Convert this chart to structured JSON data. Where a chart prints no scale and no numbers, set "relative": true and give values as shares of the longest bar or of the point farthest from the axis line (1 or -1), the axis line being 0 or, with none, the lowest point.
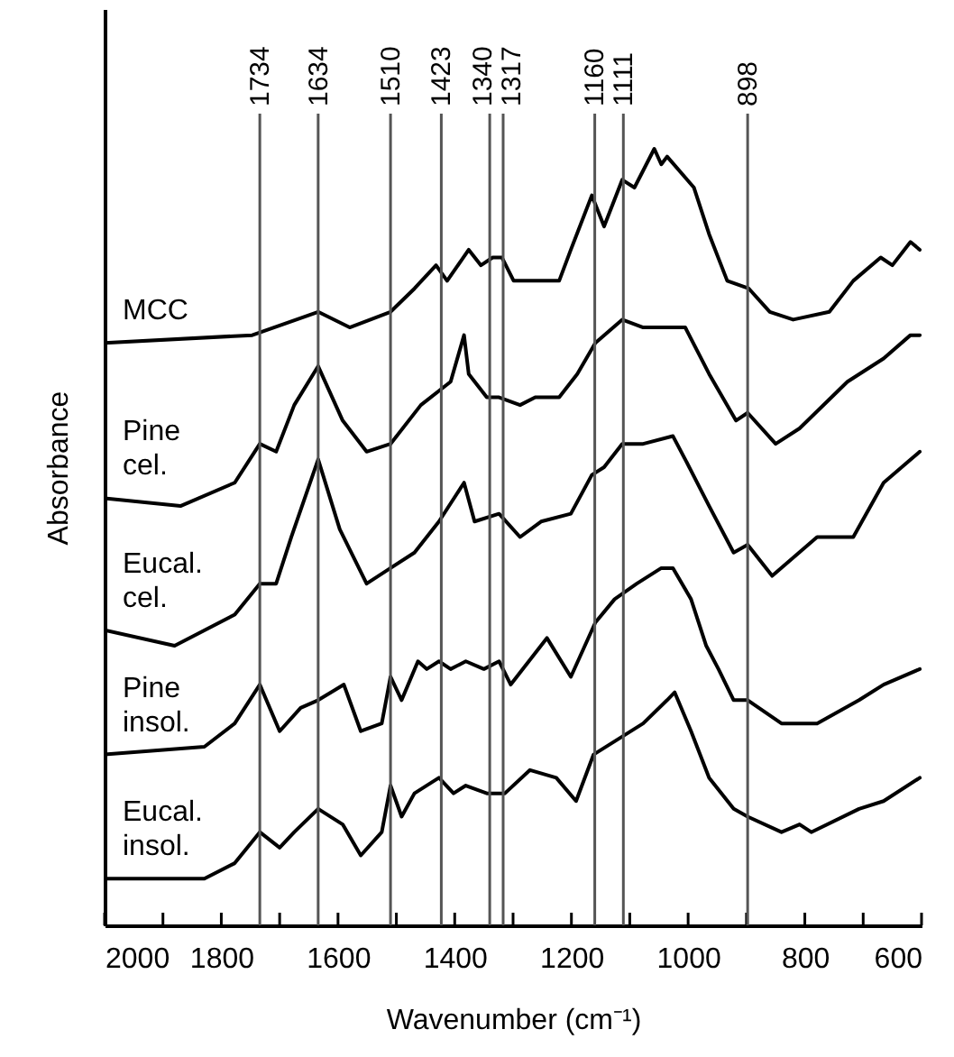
{
  "chart_data": {
    "type": "line",
    "relative": true,
    "xlabel": "Wavenumber (cm⁻¹)",
    "ylabel": "Absorbance",
    "xlim": [
      2000,
      600
    ],
    "xticks": [
      2000,
      {
        "value": 1900,
        "label": null
      },
      1800,
      {
        "value": 1700,
        "label": null
      },
      1600,
      {
        "value": 1500,
        "label": null
      },
      1400,
      {
        "value": 1300,
        "label": null
      },
      1200,
      {
        "value": 1100,
        "label": null
      },
      1000,
      {
        "value": 900,
        "label": null
      },
      800,
      {
        "value": 700,
        "label": null
      },
      600
    ],
    "series": [
      {
        "name": "MCC",
        "color": "#000000",
        "x": [
          2000,
          1747,
          1634,
          1580,
          1510,
          1469,
          1432,
          1413,
          1376,
          1355,
          1335,
          1319,
          1299,
          1221,
          1201,
          1165,
          1144,
          1113,
          1092,
          1058,
          1046,
          1036,
          990,
          964,
          933,
          896,
          860,
          820,
          758,
          717,
          670,
          650,
          619,
          603
        ],
        "values": [
          0.75,
          0.76,
          0.79,
          0.77,
          0.79,
          0.82,
          0.85,
          0.83,
          0.87,
          0.85,
          0.86,
          0.86,
          0.83,
          0.83,
          0.87,
          0.94,
          0.9,
          0.96,
          0.95,
          1.0,
          0.98,
          0.99,
          0.95,
          0.89,
          0.83,
          0.82,
          0.79,
          0.78,
          0.79,
          0.83,
          0.86,
          0.85,
          0.88,
          0.87
        ]
      },
      {
        "name": "Pine cel.",
        "color": "#000000",
        "x": [
          2000,
          1870,
          1777,
          1734,
          1706,
          1675,
          1634,
          1592,
          1551,
          1510,
          1458,
          1407,
          1384,
          1376,
          1345,
          1324,
          1288,
          1262,
          1221,
          1190,
          1159,
          1113,
          1077,
          1036,
          1005,
          964,
          918,
          898,
          850,
          809,
          727,
          665,
          619,
          603
        ],
        "values": [
          0.55,
          0.54,
          0.57,
          0.62,
          0.61,
          0.67,
          0.72,
          0.65,
          0.61,
          0.62,
          0.67,
          0.7,
          0.76,
          0.71,
          0.68,
          0.68,
          0.67,
          0.68,
          0.68,
          0.71,
          0.75,
          0.78,
          0.77,
          0.77,
          0.77,
          0.71,
          0.65,
          0.66,
          0.62,
          0.64,
          0.7,
          0.73,
          0.76,
          0.76
        ]
      },
      {
        "name": "Eucal. cel.",
        "color": "#000000",
        "x": [
          2000,
          1880,
          1777,
          1734,
          1706,
          1680,
          1634,
          1597,
          1551,
          1510,
          1469,
          1427,
          1384,
          1366,
          1324,
          1288,
          1252,
          1201,
          1165,
          1144,
          1113,
          1077,
          1026,
          1005,
          964,
          922,
          898,
          856,
          779,
          717,
          665,
          603
        ],
        "values": [
          0.38,
          0.36,
          0.4,
          0.44,
          0.44,
          0.5,
          0.6,
          0.51,
          0.44,
          0.46,
          0.48,
          0.52,
          0.57,
          0.52,
          0.53,
          0.5,
          0.52,
          0.53,
          0.58,
          0.59,
          0.62,
          0.62,
          0.63,
          0.6,
          0.54,
          0.48,
          0.49,
          0.45,
          0.5,
          0.5,
          0.57,
          0.61
        ]
      },
      {
        "name": "Pine insol.",
        "color": "#000000",
        "x": [
          2000,
          1829,
          1777,
          1734,
          1700,
          1664,
          1634,
          1590,
          1561,
          1525,
          1510,
          1491,
          1463,
          1448,
          1427,
          1407,
          1381,
          1350,
          1324,
          1304,
          1242,
          1201,
          1159,
          1126,
          1088,
          1046,
          1026,
          995,
          969,
          948,
          922,
          898,
          840,
          779,
          707,
          665,
          603
        ],
        "values": [
          0.22,
          0.23,
          0.26,
          0.31,
          0.25,
          0.28,
          0.29,
          0.31,
          0.25,
          0.26,
          0.32,
          0.29,
          0.34,
          0.33,
          0.34,
          0.33,
          0.34,
          0.33,
          0.34,
          0.31,
          0.37,
          0.32,
          0.39,
          0.42,
          0.44,
          0.46,
          0.46,
          0.42,
          0.36,
          0.33,
          0.29,
          0.29,
          0.26,
          0.26,
          0.29,
          0.31,
          0.33
        ]
      },
      {
        "name": "Eucal. insol.",
        "color": "#000000",
        "x": [
          2000,
          1829,
          1777,
          1734,
          1700,
          1675,
          1634,
          1592,
          1561,
          1525,
          1510,
          1491,
          1469,
          1427,
          1402,
          1381,
          1345,
          1314,
          1271,
          1226,
          1192,
          1162,
          1077,
          1036,
          1023,
          995,
          964,
          922,
          898,
          840,
          809,
          789,
          707,
          665,
          603
        ],
        "values": [
          0.06,
          0.06,
          0.08,
          0.12,
          0.1,
          0.12,
          0.15,
          0.13,
          0.09,
          0.12,
          0.18,
          0.14,
          0.17,
          0.19,
          0.17,
          0.18,
          0.17,
          0.17,
          0.2,
          0.19,
          0.16,
          0.22,
          0.26,
          0.29,
          0.3,
          0.25,
          0.19,
          0.15,
          0.14,
          0.12,
          0.13,
          0.12,
          0.15,
          0.16,
          0.19
        ]
      }
    ],
    "ref_lines": [
      {
        "axis": "x",
        "value": 1734,
        "label": "1734",
        "color": "#555555"
      },
      {
        "axis": "x",
        "value": 1634,
        "label": "1634",
        "color": "#555555"
      },
      {
        "axis": "x",
        "value": 1510,
        "label": "1510",
        "color": "#555555"
      },
      {
        "axis": "x",
        "value": 1423,
        "label": "1423",
        "color": "#555555"
      },
      {
        "axis": "x",
        "value": 1340,
        "label": "1340",
        "color": "#555555"
      },
      {
        "axis": "x",
        "value": 1317,
        "label": "1317",
        "color": "#555555"
      },
      {
        "axis": "x",
        "value": 1160,
        "label": "1160",
        "color": "#555555"
      },
      {
        "axis": "x",
        "value": 1111,
        "label": "1111",
        "color": "#555555"
      },
      {
        "axis": "x",
        "value": 898,
        "label": "898",
        "color": "#555555"
      }
    ]
  }
}
